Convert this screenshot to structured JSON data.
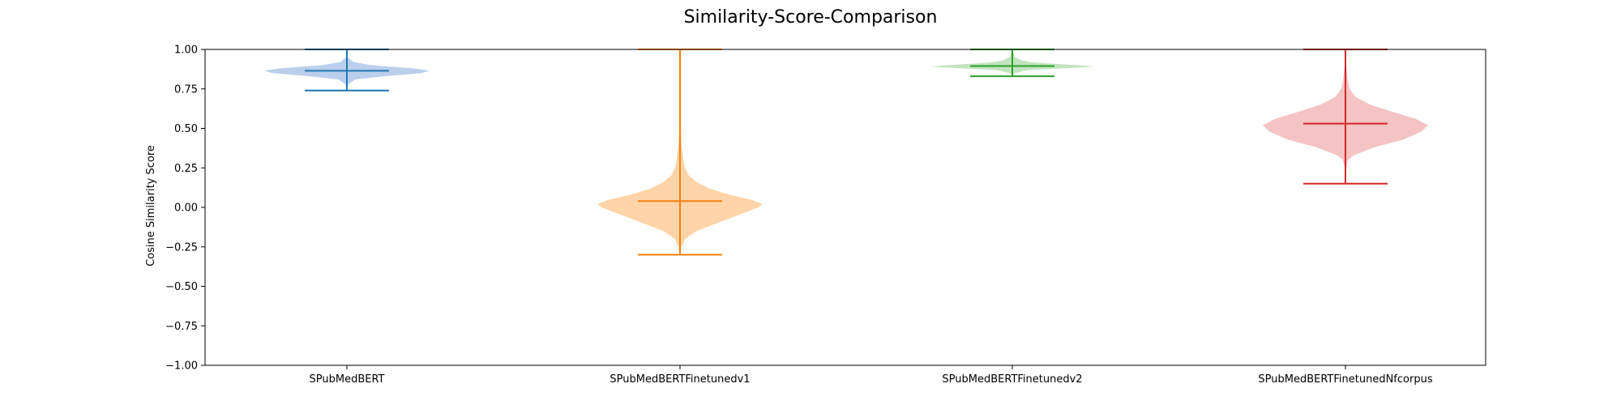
{
  "chart_data": {
    "type": "violin",
    "title": "Similarity-Score-Comparison",
    "xlabel": "",
    "ylabel": "Cosine Similarity Score",
    "ylim": [
      -1.0,
      1.0
    ],
    "yticks": [
      -1.0,
      -0.75,
      -0.5,
      -0.25,
      0.0,
      0.25,
      0.5,
      0.75,
      1.0
    ],
    "ytick_labels": [
      "−1.00",
      "−0.75",
      "−0.50",
      "−0.25",
      "0.00",
      "0.25",
      "0.50",
      "0.75",
      "1.00"
    ],
    "grid": false,
    "categories": [
      "SPubMedBERT",
      "SPubMedBERTFinetunedv1",
      "SPubMedBERTFinetunedv2",
      "SPubMedBERTFinetunedNfcorpus"
    ],
    "series": [
      {
        "category": "SPubMedBERT",
        "color": "#1f77b4",
        "fill": "#aec7e8",
        "min": 0.74,
        "max": 1.0,
        "median": 0.865,
        "density": [
          [
            0.74,
            0.0
          ],
          [
            0.78,
            0.02
          ],
          [
            0.81,
            0.1
          ],
          [
            0.83,
            0.45
          ],
          [
            0.85,
            0.9
          ],
          [
            0.865,
            1.0
          ],
          [
            0.88,
            0.8
          ],
          [
            0.9,
            0.3
          ],
          [
            0.92,
            0.08
          ],
          [
            0.95,
            0.01
          ],
          [
            1.0,
            0.0
          ]
        ]
      },
      {
        "category": "SPubMedBERTFinetunedv1",
        "color": "#ff7f0e",
        "fill": "#ffcc99",
        "min": -0.3,
        "max": 1.0,
        "median": 0.04,
        "density": [
          [
            -0.3,
            0.0
          ],
          [
            -0.25,
            0.02
          ],
          [
            -0.2,
            0.06
          ],
          [
            -0.15,
            0.2
          ],
          [
            -0.1,
            0.45
          ],
          [
            -0.05,
            0.7
          ],
          [
            0.0,
            0.95
          ],
          [
            0.02,
            1.0
          ],
          [
            0.05,
            0.85
          ],
          [
            0.08,
            0.6
          ],
          [
            0.12,
            0.35
          ],
          [
            0.16,
            0.2
          ],
          [
            0.2,
            0.11
          ],
          [
            0.25,
            0.06
          ],
          [
            0.3,
            0.04
          ],
          [
            0.4,
            0.02
          ],
          [
            0.5,
            0.01
          ],
          [
            0.6,
            0.004
          ],
          [
            0.8,
            0.002
          ],
          [
            1.0,
            0.0
          ]
        ]
      },
      {
        "category": "SPubMedBERTFinetunedv2",
        "color": "#2ca02c",
        "fill": "#b6dfb0",
        "min": 0.83,
        "max": 1.0,
        "median": 0.895,
        "density": [
          [
            0.83,
            0.0
          ],
          [
            0.85,
            0.03
          ],
          [
            0.87,
            0.2
          ],
          [
            0.88,
            0.6
          ],
          [
            0.89,
            1.0
          ],
          [
            0.9,
            0.8
          ],
          [
            0.91,
            0.45
          ],
          [
            0.92,
            0.22
          ],
          [
            0.93,
            0.12
          ],
          [
            0.95,
            0.03
          ],
          [
            1.0,
            0.0
          ]
        ]
      },
      {
        "category": "SPubMedBERTFinetunedNfcorpus",
        "color": "#d62728",
        "fill": "#f2b8b8",
        "min": 0.15,
        "max": 1.0,
        "median": 0.53,
        "density": [
          [
            0.15,
            0.0
          ],
          [
            0.25,
            0.01
          ],
          [
            0.3,
            0.03
          ],
          [
            0.33,
            0.1
          ],
          [
            0.38,
            0.35
          ],
          [
            0.43,
            0.7
          ],
          [
            0.48,
            0.92
          ],
          [
            0.52,
            1.0
          ],
          [
            0.56,
            0.85
          ],
          [
            0.6,
            0.6
          ],
          [
            0.65,
            0.3
          ],
          [
            0.7,
            0.12
          ],
          [
            0.75,
            0.05
          ],
          [
            0.8,
            0.03
          ],
          [
            0.9,
            0.01
          ],
          [
            1.0,
            0.0
          ]
        ]
      }
    ]
  }
}
